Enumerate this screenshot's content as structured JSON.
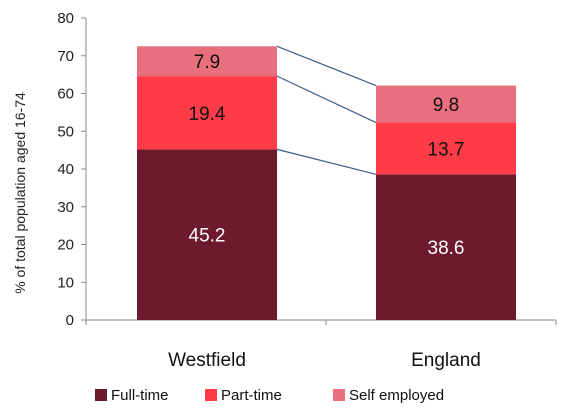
{
  "chart_data": {
    "type": "bar",
    "stacked": true,
    "categories": [
      "Westfield",
      "England"
    ],
    "series": [
      {
        "name": "Full-time",
        "values": [
          45.2,
          38.6
        ],
        "color": "#6e1a2e",
        "label_color": "#ffffff"
      },
      {
        "name": "Part-time",
        "values": [
          19.4,
          13.7
        ],
        "color": "#ff3b47",
        "label_color": "#111111"
      },
      {
        "name": "Self employed",
        "values": [
          7.9,
          9.8
        ],
        "color": "#e8707e",
        "label_color": "#111111"
      }
    ],
    "title": "",
    "xlabel": "",
    "ylabel": "% of total population aged 16-74",
    "ylim": [
      0,
      80
    ],
    "yticks": [
      0,
      10,
      20,
      30,
      40,
      50,
      60,
      70,
      80
    ],
    "grid": false,
    "legend_position": "bottom",
    "connector_lines": true,
    "connector_color": "#3a5f8a"
  }
}
